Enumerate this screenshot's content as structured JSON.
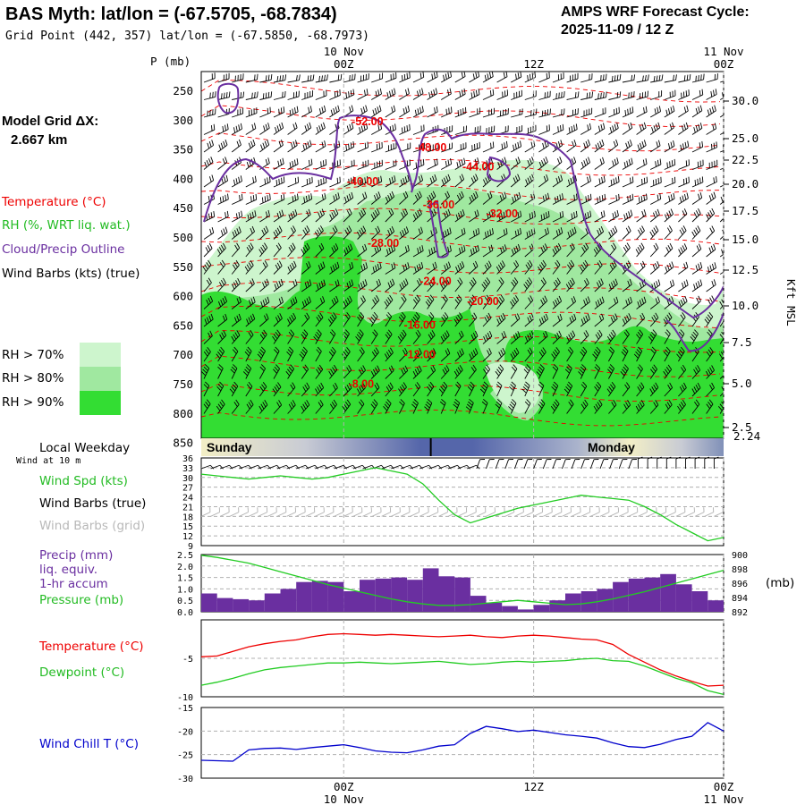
{
  "header": {
    "title": "BAS Myth:  lat/lon = (-67.5705, -68.7834)",
    "grid_point": "Grid Point (442, 357) lat/lon = (-67.5850, -68.7973)",
    "cycle_line1": "AMPS WRF Forecast Cycle:",
    "cycle_line2": "2025-11-09 / 12  Z"
  },
  "time_axis": {
    "ticks": [
      {
        "hour": 0,
        "label": "00Z",
        "date": "10 Nov"
      },
      {
        "hour": 12,
        "label": "12Z",
        "date": ""
      },
      {
        "hour": 24,
        "label": "00Z",
        "date": "11 Nov"
      }
    ],
    "range_hours": [
      -9,
      24
    ]
  },
  "left_labels": {
    "model_grid_line1": "Model Grid ΔX:",
    "model_grid_line2": "2.667 km",
    "temperature": "Temperature (°C)",
    "rh": "RH (%, WRT liq. wat.)",
    "cloud": "Cloud/Precip Outline",
    "wind_barbs": "Wind Barbs (kts) (true)",
    "rh70": "RH > 70%",
    "rh80": "RH > 80%",
    "rh90": "RH > 90%",
    "local_weekday": "Local Weekday",
    "wind_at_10m": "Wind at 10 m",
    "wind_spd": "Wind Spd (kts)",
    "barbs_true": "Wind Barbs (true)",
    "barbs_grid": "Wind Barbs (grid)",
    "precip": "Precip (mm)",
    "liq_equiv": "liq. equiv.",
    "accum": "1-hr accum",
    "pressure": "Pressure (mb)",
    "temp2": "Temperature (°C)",
    "dewpoint": "Dewpoint (°C)",
    "windchill": "Wind Chill T (°C)",
    "mb_unit": "(mb)",
    "p_axis_title": "P (mb)",
    "kft_title": "Kft MSL"
  },
  "colors": {
    "rh70": "#cdf5cd",
    "rh80": "#a0e8a0",
    "rh90": "#33dd33",
    "temperature": "#ee0000",
    "dewpoint": "#22cc22",
    "cloud": "#6a2fa0",
    "precip": "#6a2fa0",
    "windchill": "#0000cc"
  },
  "weekday_bar": {
    "day1": "Sunday",
    "day2": "Monday",
    "solar_noon_min_hour": 5.5
  },
  "chart_data": [
    {
      "type": "area",
      "title": "Vertical cross-section (time-height)",
      "pressure_ticks": [
        250,
        300,
        350,
        400,
        450,
        500,
        550,
        600,
        650,
        700,
        750,
        800,
        850
      ],
      "kft_ticks": [
        "30.0",
        "25.0",
        "22.5",
        "20.0",
        "17.5",
        "15.0",
        "12.5",
        "10.0",
        "7.5",
        "5.0",
        "2.5"
      ],
      "surface_height_kft": "2.24",
      "isotherm_labels": [
        {
          "label": "-52.00",
          "hour": 0.5,
          "p": 308
        },
        {
          "label": "-48.00",
          "hour": 4.5,
          "p": 352
        },
        {
          "label": "-44.00",
          "hour": 7.5,
          "p": 385
        },
        {
          "label": "-40.00",
          "hour": 0.2,
          "p": 410
        },
        {
          "label": "-36.00",
          "hour": 5.0,
          "p": 450
        },
        {
          "label": "-32.00",
          "hour": 9.0,
          "p": 465
        },
        {
          "label": "-28.00",
          "hour": 1.5,
          "p": 515
        },
        {
          "label": "-24.00",
          "hour": 4.8,
          "p": 580
        },
        {
          "label": "-20.00",
          "hour": 7.8,
          "p": 614
        },
        {
          "label": "-16.00",
          "hour": 3.8,
          "p": 655
        },
        {
          "label": "-12.00",
          "hour": 3.8,
          "p": 705
        },
        {
          "label": "-8.00",
          "hour": 0.3,
          "p": 755
        }
      ]
    },
    {
      "type": "line",
      "title": "10 m wind speed",
      "ylim": [
        9,
        36
      ],
      "yticks": [
        9,
        12,
        15,
        18,
        21,
        24,
        27,
        30,
        33,
        36
      ],
      "x": [
        -9,
        -8,
        -7,
        -6,
        -5,
        -4,
        -3,
        -2,
        -1,
        0,
        1,
        2,
        3,
        4,
        5,
        6,
        7,
        8,
        9,
        10,
        11,
        12,
        13,
        14,
        15,
        16,
        17,
        18,
        19,
        20,
        21,
        22,
        23,
        24
      ],
      "values": [
        31,
        30.5,
        30,
        29.5,
        30,
        30.5,
        30,
        29.5,
        30,
        31,
        32,
        33,
        32,
        31,
        28,
        23,
        18.5,
        16,
        17.5,
        19,
        20.5,
        21.5,
        22.5,
        23.5,
        24.5,
        24,
        23.5,
        23,
        21,
        18.5,
        15.5,
        13,
        10.5,
        11.5
      ]
    },
    {
      "type": "bar",
      "title": "Precipitation and pressure",
      "precip_ylim": [
        0,
        2.5
      ],
      "precip_yticks": [
        "0.0",
        "0.5",
        "1.0",
        "1.5",
        "2.0",
        "2.5"
      ],
      "pressure_ylim": [
        892,
        900
      ],
      "pressure_yticks": [
        "892",
        "894",
        "896",
        "898",
        "900"
      ],
      "precip_x": [
        -9,
        -8,
        -7,
        -6,
        -5,
        -4,
        -3,
        -2,
        -1,
        0,
        1,
        2,
        3,
        4,
        5,
        6,
        7,
        8,
        9,
        10,
        11,
        12,
        13,
        14,
        15,
        16,
        17,
        18,
        19,
        20,
        21,
        22,
        23
      ],
      "precip_values": [
        0.8,
        0.6,
        0.55,
        0.5,
        0.8,
        1.0,
        1.3,
        1.35,
        1.3,
        0.9,
        1.4,
        1.45,
        1.5,
        1.4,
        1.9,
        1.55,
        1.5,
        0.7,
        0.4,
        0.25,
        0.1,
        0.3,
        0.5,
        0.8,
        0.9,
        1.0,
        1.3,
        1.45,
        1.5,
        1.65,
        1.2,
        0.9,
        0.5
      ],
      "pressure_x": [
        -9,
        -8,
        -7,
        -6,
        -5,
        -4,
        -3,
        -2,
        -1,
        0,
        1,
        2,
        3,
        4,
        5,
        6,
        7,
        8,
        9,
        10,
        11,
        12,
        13,
        14,
        15,
        16,
        17,
        18,
        19,
        20,
        21,
        22,
        23,
        24
      ],
      "pressure_values": [
        899.9,
        899.6,
        899.2,
        898.8,
        898.2,
        897.6,
        897.0,
        896.4,
        895.8,
        895.3,
        894.8,
        894.3,
        893.8,
        893.4,
        893.1,
        892.9,
        892.9,
        893.0,
        893.2,
        893.4,
        893.6,
        893.4,
        893.2,
        893.0,
        893.1,
        893.4,
        893.8,
        894.3,
        894.8,
        895.4,
        896.0,
        896.6,
        897.2,
        897.8
      ]
    },
    {
      "type": "line",
      "title": "Temperature and dewpoint",
      "ylim": [
        -10,
        0
      ],
      "yticks": [
        -5,
        -10
      ],
      "x": [
        -9,
        -8,
        -7,
        -6,
        -5,
        -4,
        -3,
        -2,
        -1,
        0,
        1,
        2,
        3,
        4,
        5,
        6,
        7,
        8,
        9,
        10,
        11,
        12,
        13,
        14,
        15,
        16,
        17,
        18,
        19,
        20,
        21,
        22,
        23,
        24
      ],
      "series": [
        {
          "name": "Temperature",
          "values": [
            -4.8,
            -4.7,
            -4.1,
            -3.5,
            -3.1,
            -2.8,
            -2.6,
            -2.2,
            -1.9,
            -1.8,
            -1.9,
            -2.0,
            -1.9,
            -2.0,
            -2.1,
            -2.2,
            -2.1,
            -2.0,
            -2.2,
            -2.3,
            -2.1,
            -2.0,
            -2.1,
            -2.3,
            -2.5,
            -2.6,
            -3.2,
            -4.5,
            -5.5,
            -6.5,
            -7.3,
            -8.0,
            -8.6,
            -8.5
          ]
        },
        {
          "name": "Dewpoint",
          "values": [
            -8.5,
            -8.1,
            -7.6,
            -7.0,
            -6.5,
            -6.2,
            -6.0,
            -5.8,
            -5.6,
            -5.6,
            -5.5,
            -5.6,
            -5.7,
            -5.6,
            -5.5,
            -5.4,
            -5.6,
            -5.8,
            -5.7,
            -5.5,
            -5.4,
            -5.5,
            -5.4,
            -5.3,
            -5.1,
            -5.0,
            -5.3,
            -5.4,
            -6.0,
            -6.8,
            -7.6,
            -8.2,
            -9.2,
            -9.7
          ]
        }
      ]
    },
    {
      "type": "line",
      "title": "Wind chill temperature",
      "ylim": [
        -30,
        -15
      ],
      "yticks": [
        -15,
        -20,
        -25,
        -30
      ],
      "x": [
        -9,
        -8,
        -7,
        -6,
        -5,
        -4,
        -3,
        -2,
        -1,
        0,
        1,
        2,
        3,
        4,
        5,
        6,
        7,
        8,
        9,
        10,
        11,
        12,
        13,
        14,
        15,
        16,
        17,
        18,
        19,
        20,
        21,
        22,
        23,
        24
      ],
      "values": [
        -26.2,
        -26.3,
        -26.4,
        -24.0,
        -23.7,
        -23.6,
        -23.9,
        -23.5,
        -23.2,
        -22.9,
        -23.5,
        -24.2,
        -24.5,
        -24.6,
        -24.0,
        -23.2,
        -22.9,
        -20.5,
        -19.0,
        -19.5,
        -20.1,
        -19.8,
        -20.3,
        -20.8,
        -21.1,
        -21.5,
        -22.5,
        -23.3,
        -23.5,
        -22.8,
        -21.8,
        -21.1,
        -18.2,
        -20.0
      ]
    }
  ]
}
